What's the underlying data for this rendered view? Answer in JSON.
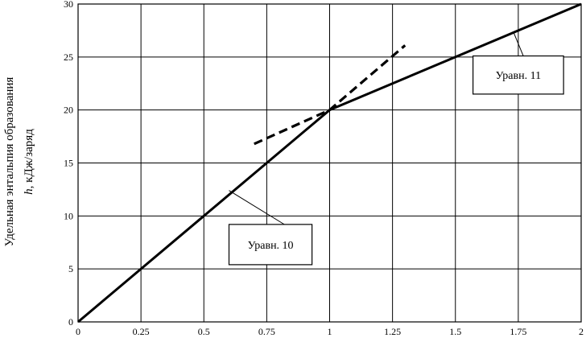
{
  "chart_data": {
    "type": "line",
    "title": "",
    "xlabel": "",
    "ylabel_line1": "Удельная энтальпия образования",
    "ylabel_line2_var": "h",
    "ylabel_line2_rest": ", кДж/заряд",
    "xlim": [
      0,
      2
    ],
    "ylim": [
      0,
      30
    ],
    "xticks": [
      0,
      0.25,
      0.5,
      0.75,
      1,
      1.25,
      1.5,
      1.75,
      2
    ],
    "xtick_labels": [
      "0",
      "0.25",
      "0.5",
      "0.75",
      "1",
      "1.25",
      "1.5",
      "1.75",
      "2"
    ],
    "yticks": [
      0,
      5,
      10,
      15,
      20,
      25,
      30
    ],
    "ytick_labels": [
      "0",
      "5",
      "10",
      "15",
      "20",
      "25",
      "30"
    ],
    "grid": true,
    "series": [
      {
        "style": "solid",
        "x": [
          0,
          1
        ],
        "y": [
          0,
          20
        ]
      },
      {
        "style": "solid",
        "x": [
          1,
          2
        ],
        "y": [
          20,
          30
        ]
      },
      {
        "style": "dashed",
        "x": [
          0.7,
          1,
          1.3
        ],
        "y": [
          16.8,
          20,
          26.1
        ]
      }
    ],
    "annotations": [
      {
        "text": "Уравн. 10",
        "box_x": [
          0.6,
          0.93
        ],
        "box_y": [
          5.4,
          9.2
        ],
        "leader_from": [
          0.82,
          9.2
        ],
        "leader_to": [
          0.6,
          12.4
        ]
      },
      {
        "text": "Уравн. 11",
        "box_x": [
          1.57,
          1.93
        ],
        "box_y": [
          21.5,
          25.1
        ],
        "leader_from": [
          1.77,
          25.1
        ],
        "leader_to": [
          1.73,
          27.4
        ]
      }
    ]
  }
}
